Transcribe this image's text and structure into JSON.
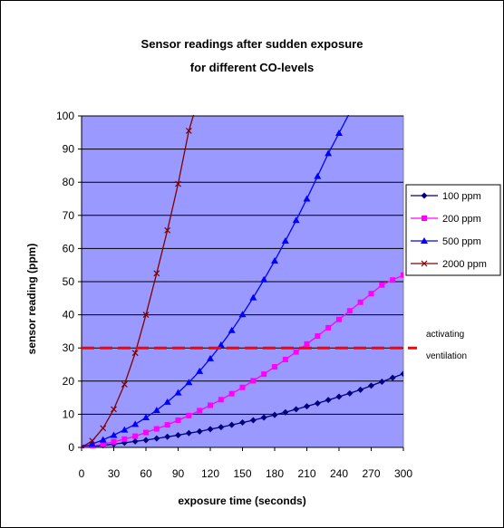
{
  "chart_data": {
    "type": "line",
    "title_line1": "Sensor readings after sudden exposure",
    "title_line2": "for different CO-levels",
    "xlabel": "exposure time (seconds)",
    "ylabel": "sensor reading (ppm)",
    "xlim": [
      0,
      300
    ],
    "ylim": [
      0,
      100
    ],
    "xticks": [
      0,
      30,
      60,
      90,
      120,
      150,
      180,
      210,
      240,
      270,
      300
    ],
    "yticks": [
      0,
      10,
      20,
      30,
      40,
      50,
      60,
      70,
      80,
      90,
      100
    ],
    "grid": true,
    "plot_background": "#9999ff",
    "legend_position": "right",
    "series": [
      {
        "name": "100 ppm",
        "color": "#000080",
        "marker": "diamond",
        "x": [
          0,
          10,
          20,
          30,
          40,
          50,
          60,
          70,
          80,
          90,
          100,
          110,
          120,
          130,
          140,
          150,
          160,
          170,
          180,
          190,
          200,
          210,
          220,
          230,
          240,
          250,
          260,
          270,
          280,
          290,
          300
        ],
        "y": [
          0,
          0.3,
          0.6,
          1.0,
          1.4,
          1.8,
          2.2,
          2.7,
          3.2,
          3.7,
          4.3,
          4.8,
          5.5,
          6.1,
          6.8,
          7.5,
          8.2,
          9.0,
          9.8,
          10.6,
          11.5,
          12.4,
          13.3,
          14.3,
          15.3,
          16.3,
          17.4,
          18.6,
          19.8,
          21.0,
          22.2
        ]
      },
      {
        "name": "200 ppm",
        "color": "#ff00ff",
        "marker": "square",
        "x": [
          0,
          10,
          20,
          30,
          40,
          50,
          60,
          70,
          80,
          90,
          100,
          110,
          120,
          130,
          140,
          150,
          160,
          170,
          180,
          190,
          200,
          210,
          220,
          230,
          240,
          250,
          260,
          270,
          280,
          290,
          300
        ],
        "y": [
          0,
          0.4,
          1.0,
          1.7,
          2.5,
          3.4,
          4.5,
          5.6,
          6.8,
          8.2,
          9.6,
          11.1,
          12.7,
          14.4,
          16.2,
          18.1,
          20.1,
          22.1,
          24.3,
          26.5,
          28.8,
          31.2,
          33.6,
          36.1,
          38.6,
          41.2,
          43.8,
          46.4,
          49.0,
          50.5,
          52.0
        ]
      },
      {
        "name": "500 ppm",
        "color": "#0000ff",
        "marker": "triangle",
        "x": [
          0,
          10,
          20,
          30,
          40,
          50,
          60,
          70,
          80,
          90,
          100,
          110,
          120,
          130,
          140,
          150,
          160,
          170,
          180,
          190,
          200,
          210,
          220,
          230,
          240,
          250
        ],
        "y": [
          0,
          1.0,
          2.3,
          3.7,
          5.3,
          7.0,
          9.0,
          11.2,
          13.7,
          16.5,
          19.6,
          23.0,
          26.8,
          30.9,
          35.3,
          40.1,
          45.2,
          50.6,
          56.3,
          62.3,
          68.5,
          75.0,
          81.8,
          88.7,
          94.8,
          101.0
        ]
      },
      {
        "name": "2000 ppm",
        "color": "#800000",
        "marker": "cross",
        "x": [
          0,
          10,
          20,
          30,
          40,
          50,
          60,
          70,
          80,
          90,
          100,
          105
        ],
        "y": [
          0,
          2.0,
          5.8,
          11.5,
          19.0,
          28.5,
          40.0,
          52.5,
          65.5,
          79.5,
          95.5,
          101.0
        ]
      }
    ],
    "reference_line": {
      "y": 30,
      "color": "#ff0000",
      "dashed": true
    },
    "annotation": {
      "line1": "activating",
      "line2": "ventilation"
    }
  }
}
